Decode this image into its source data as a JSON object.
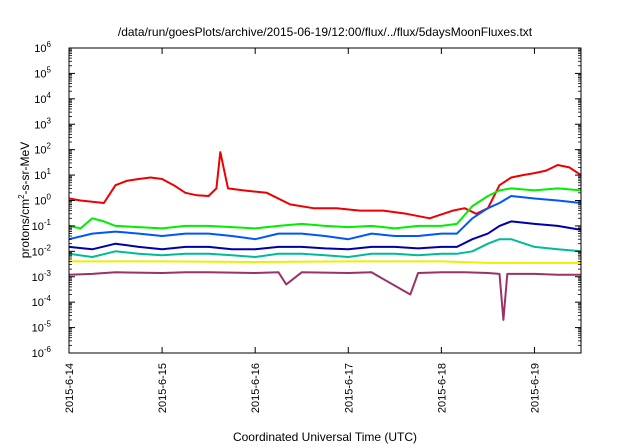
{
  "chart_data": {
    "type": "line",
    "title": "/data/run/goesPlots/archive/2015-06-19/12:00/flux/../flux/5daysMoonFluxes.txt",
    "xlabel": "Coordinated Universal Time (UTC)",
    "ylabel_prefix": "protons/cm",
    "ylabel_sup": "2",
    "ylabel_suffix": "-s-sr-MeV",
    "y_scale": "log",
    "ylim": [
      1e-06,
      1000000.0
    ],
    "xlim": [
      "2015-06-14 00:00",
      "2015-06-19 12:00"
    ],
    "x_ticks": [
      "2015-6-14",
      "2015-6-15",
      "2015-6-16",
      "2015-6-17",
      "2015-6-18",
      "2015-6-19"
    ],
    "y_ticks": [
      {
        "base": "10",
        "exp": "-6",
        "value": 1e-06
      },
      {
        "base": "10",
        "exp": "-5",
        "value": 1e-05
      },
      {
        "base": "10",
        "exp": "-4",
        "value": 0.0001
      },
      {
        "base": "10",
        "exp": "-3",
        "value": 0.001
      },
      {
        "base": "10",
        "exp": "-2",
        "value": 0.01
      },
      {
        "base": "10",
        "exp": "-1",
        "value": 0.1
      },
      {
        "base": "10",
        "exp": "0",
        "value": 1
      },
      {
        "base": "10",
        "exp": "1",
        "value": 10
      },
      {
        "base": "10",
        "exp": "2",
        "value": 100
      },
      {
        "base": "10",
        "exp": "3",
        "value": 1000
      },
      {
        "base": "10",
        "exp": "4",
        "value": 10000
      },
      {
        "base": "10",
        "exp": "5",
        "value": 100000
      },
      {
        "base": "10",
        "exp": "6",
        "value": 1000000
      }
    ],
    "grid": false,
    "legend": "none",
    "series": [
      {
        "color": "#ee0000",
        "x": [
          "2015-06-14 00:00",
          "2015-06-14 03:00",
          "2015-06-14 06:00",
          "2015-06-14 09:00",
          "2015-06-14 12:00",
          "2015-06-14 15:00",
          "2015-06-14 18:00",
          "2015-06-14 21:00",
          "2015-06-15 00:00",
          "2015-06-15 03:00",
          "2015-06-15 06:00",
          "2015-06-15 09:00",
          "2015-06-15 12:00",
          "2015-06-15 14:00",
          "2015-06-15 15:00",
          "2015-06-15 17:00",
          "2015-06-15 21:00",
          "2015-06-16 03:00",
          "2015-06-16 09:00",
          "2015-06-16 15:00",
          "2015-06-16 21:00",
          "2015-06-17 03:00",
          "2015-06-17 09:00",
          "2015-06-17 15:00",
          "2015-06-17 21:00",
          "2015-06-18 03:00",
          "2015-06-18 06:00",
          "2015-06-18 09:00",
          "2015-06-18 12:00",
          "2015-06-18 15:00",
          "2015-06-18 18:00",
          "2015-06-18 21:00",
          "2015-06-19 00:00",
          "2015-06-19 03:00",
          "2015-06-19 06:00",
          "2015-06-19 09:00",
          "2015-06-19 12:00"
        ],
        "y": [
          1.2,
          1.0,
          0.9,
          0.8,
          4,
          6,
          7,
          8,
          7,
          4,
          2,
          1.6,
          1.5,
          3,
          80,
          3,
          2.5,
          2.0,
          0.7,
          0.5,
          0.5,
          0.4,
          0.4,
          0.3,
          0.2,
          0.4,
          0.5,
          0.3,
          0.5,
          4,
          8,
          10,
          12,
          15,
          25,
          20,
          10
        ]
      },
      {
        "color": "#00ee00",
        "x": [
          "2015-06-14 00:00",
          "2015-06-14 03:00",
          "2015-06-14 06:00",
          "2015-06-14 09:00",
          "2015-06-14 12:00",
          "2015-06-14 18:00",
          "2015-06-15 00:00",
          "2015-06-15 06:00",
          "2015-06-15 12:00",
          "2015-06-15 18:00",
          "2015-06-16 00:00",
          "2015-06-16 06:00",
          "2015-06-16 12:00",
          "2015-06-16 18:00",
          "2015-06-17 00:00",
          "2015-06-17 06:00",
          "2015-06-17 12:00",
          "2015-06-17 18:00",
          "2015-06-18 00:00",
          "2015-06-18 04:00",
          "2015-06-18 08:00",
          "2015-06-18 12:00",
          "2015-06-18 15:00",
          "2015-06-18 18:00",
          "2015-06-19 00:00",
          "2015-06-19 06:00",
          "2015-06-19 12:00"
        ],
        "y": [
          0.1,
          0.08,
          0.2,
          0.15,
          0.1,
          0.09,
          0.08,
          0.1,
          0.1,
          0.09,
          0.08,
          0.1,
          0.12,
          0.1,
          0.09,
          0.1,
          0.08,
          0.1,
          0.1,
          0.12,
          0.6,
          1.5,
          2.5,
          3,
          2.5,
          3,
          2.5
        ]
      },
      {
        "color": "#0055ff",
        "x": [
          "2015-06-14 00:00",
          "2015-06-14 06:00",
          "2015-06-14 12:00",
          "2015-06-14 18:00",
          "2015-06-15 00:00",
          "2015-06-15 06:00",
          "2015-06-15 12:00",
          "2015-06-15 18:00",
          "2015-06-16 00:00",
          "2015-06-16 06:00",
          "2015-06-16 12:00",
          "2015-06-16 18:00",
          "2015-06-17 00:00",
          "2015-06-17 06:00",
          "2015-06-17 12:00",
          "2015-06-17 18:00",
          "2015-06-18 00:00",
          "2015-06-18 04:00",
          "2015-06-18 08:00",
          "2015-06-18 12:00",
          "2015-06-18 15:00",
          "2015-06-18 18:00",
          "2015-06-19 00:00",
          "2015-06-19 06:00",
          "2015-06-19 12:00"
        ],
        "y": [
          0.03,
          0.05,
          0.06,
          0.05,
          0.04,
          0.05,
          0.05,
          0.04,
          0.03,
          0.05,
          0.05,
          0.04,
          0.03,
          0.05,
          0.04,
          0.04,
          0.05,
          0.05,
          0.2,
          0.5,
          0.8,
          1.5,
          1.2,
          1.0,
          0.8
        ]
      },
      {
        "color": "#0000aa",
        "x": [
          "2015-06-14 00:00",
          "2015-06-14 06:00",
          "2015-06-14 12:00",
          "2015-06-14 18:00",
          "2015-06-15 00:00",
          "2015-06-15 06:00",
          "2015-06-15 12:00",
          "2015-06-15 18:00",
          "2015-06-16 00:00",
          "2015-06-16 06:00",
          "2015-06-16 12:00",
          "2015-06-16 18:00",
          "2015-06-17 00:00",
          "2015-06-17 06:00",
          "2015-06-17 12:00",
          "2015-06-17 18:00",
          "2015-06-18 00:00",
          "2015-06-18 04:00",
          "2015-06-18 08:00",
          "2015-06-18 12:00",
          "2015-06-18 15:00",
          "2015-06-18 18:00",
          "2015-06-19 00:00",
          "2015-06-19 06:00",
          "2015-06-19 12:00"
        ],
        "y": [
          0.015,
          0.012,
          0.02,
          0.015,
          0.012,
          0.015,
          0.015,
          0.012,
          0.012,
          0.015,
          0.015,
          0.013,
          0.012,
          0.015,
          0.015,
          0.013,
          0.015,
          0.015,
          0.03,
          0.05,
          0.1,
          0.15,
          0.12,
          0.1,
          0.07
        ]
      },
      {
        "color": "#00bb99",
        "x": [
          "2015-06-14 00:00",
          "2015-06-14 06:00",
          "2015-06-14 12:00",
          "2015-06-14 18:00",
          "2015-06-15 00:00",
          "2015-06-15 06:00",
          "2015-06-15 12:00",
          "2015-06-15 18:00",
          "2015-06-16 00:00",
          "2015-06-16 06:00",
          "2015-06-16 12:00",
          "2015-06-16 18:00",
          "2015-06-17 00:00",
          "2015-06-17 06:00",
          "2015-06-17 12:00",
          "2015-06-17 18:00",
          "2015-06-18 00:00",
          "2015-06-18 04:00",
          "2015-06-18 08:00",
          "2015-06-18 12:00",
          "2015-06-18 15:00",
          "2015-06-18 18:00",
          "2015-06-19 00:00",
          "2015-06-19 06:00",
          "2015-06-19 12:00"
        ],
        "y": [
          0.008,
          0.006,
          0.01,
          0.008,
          0.007,
          0.008,
          0.008,
          0.007,
          0.006,
          0.008,
          0.008,
          0.007,
          0.006,
          0.008,
          0.008,
          0.007,
          0.008,
          0.008,
          0.01,
          0.02,
          0.03,
          0.03,
          0.015,
          0.012,
          0.01
        ]
      },
      {
        "color": "#eeee00",
        "x": [
          "2015-06-14 00:00",
          "2015-06-15 00:00",
          "2015-06-16 00:00",
          "2015-06-17 00:00",
          "2015-06-18 00:00",
          "2015-06-18 12:00",
          "2015-06-19 00:00",
          "2015-06-19 12:00"
        ],
        "y": [
          0.004,
          0.004,
          0.0038,
          0.004,
          0.004,
          0.0035,
          0.0035,
          0.0035
        ]
      },
      {
        "color": "#993366",
        "x": [
          "2015-06-14 00:00",
          "2015-06-14 06:00",
          "2015-06-14 12:00",
          "2015-06-15 00:00",
          "2015-06-15 06:00",
          "2015-06-15 12:00",
          "2015-06-16 00:00",
          "2015-06-16 06:00",
          "2015-06-16 08:00",
          "2015-06-16 12:00",
          "2015-06-17 00:00",
          "2015-06-17 06:00",
          "2015-06-17 16:00",
          "2015-06-17 18:00",
          "2015-06-18 00:00",
          "2015-06-18 06:00",
          "2015-06-18 12:00",
          "2015-06-18 15:00",
          "2015-06-18 16:00",
          "2015-06-18 17:00",
          "2015-06-19 00:00",
          "2015-06-19 06:00",
          "2015-06-19 12:00"
        ],
        "y": [
          0.0012,
          0.0013,
          0.0015,
          0.0014,
          0.0015,
          0.0015,
          0.0014,
          0.0015,
          0.0005,
          0.0015,
          0.0014,
          0.0015,
          0.0002,
          0.0014,
          0.0015,
          0.0015,
          0.0014,
          0.0013,
          2e-05,
          0.0013,
          0.0013,
          0.0012,
          0.0012
        ]
      }
    ]
  }
}
